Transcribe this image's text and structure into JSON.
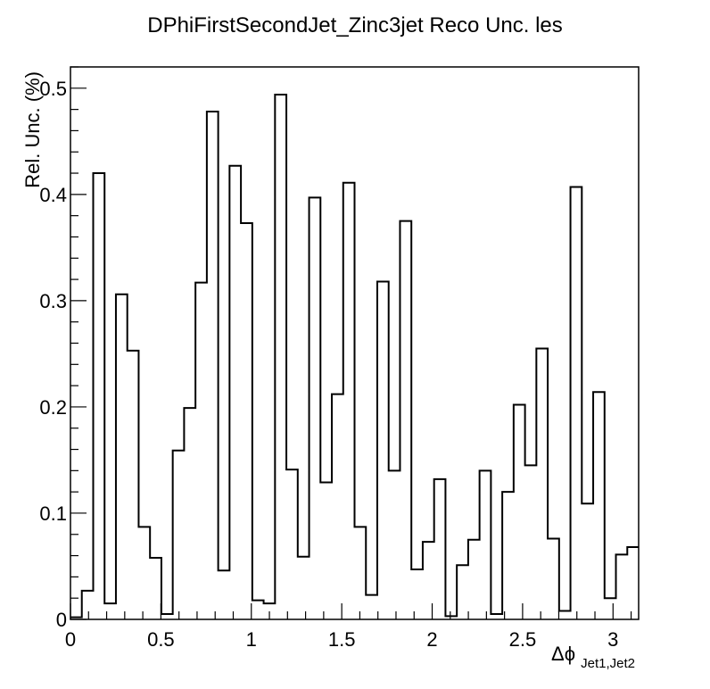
{
  "chart_data": {
    "type": "bar",
    "title": "DPhiFirstSecondJet_Zinc3jet Reco Unc. les",
    "xlabel_main": "Δϕ",
    "xlabel_sub": "Jet1,Jet2",
    "ylabel": "Rel. Unc. (%)",
    "xlim": [
      0,
      3.1416
    ],
    "ylim": [
      0,
      0.52
    ],
    "x_ticks": [
      0,
      0.5,
      1,
      1.5,
      2,
      2.5,
      3
    ],
    "x_tick_labels": [
      "0",
      "0.5",
      "1",
      "1.5",
      "2",
      "2.5",
      "3"
    ],
    "y_ticks": [
      0,
      0.1,
      0.2,
      0.3,
      0.4,
      0.5
    ],
    "y_tick_labels": [
      "0",
      "0.1",
      "0.2",
      "0.3",
      "0.4",
      "0.5"
    ],
    "grid": false,
    "histogram_step": true,
    "bin_edges": [
      0,
      0.0628,
      0.1257,
      0.1885,
      0.2513,
      0.3142,
      0.377,
      0.4398,
      0.5027,
      0.5655,
      0.6283,
      0.6912,
      0.754,
      0.8168,
      0.8796,
      0.9425,
      1.0053,
      1.0681,
      1.131,
      1.1938,
      1.2566,
      1.3195,
      1.3823,
      1.4451,
      1.508,
      1.5708,
      1.6336,
      1.6965,
      1.7593,
      1.8221,
      1.885,
      1.9478,
      2.0106,
      2.0735,
      2.1363,
      2.1991,
      2.2619,
      2.3248,
      2.3876,
      2.4504,
      2.5133,
      2.5761,
      2.6389,
      2.7018,
      2.7646,
      2.8274,
      2.8903,
      2.9531,
      3.0159,
      3.0788,
      3.1416
    ],
    "values": [
      0.002,
      0.027,
      0.42,
      0.015,
      0.306,
      0.253,
      0.087,
      0.058,
      0.005,
      0.159,
      0.199,
      0.317,
      0.478,
      0.046,
      0.427,
      0.373,
      0.018,
      0.015,
      0.494,
      0.141,
      0.059,
      0.397,
      0.129,
      0.212,
      0.411,
      0.087,
      0.023,
      0.318,
      0.14,
      0.375,
      0.047,
      0.073,
      0.132,
      0.003,
      0.051,
      0.075,
      0.14,
      0.005,
      0.12,
      0.202,
      0.145,
      0.255,
      0.076,
      0.008,
      0.407,
      0.109,
      0.214,
      0.02,
      0.061,
      0.068
    ]
  }
}
